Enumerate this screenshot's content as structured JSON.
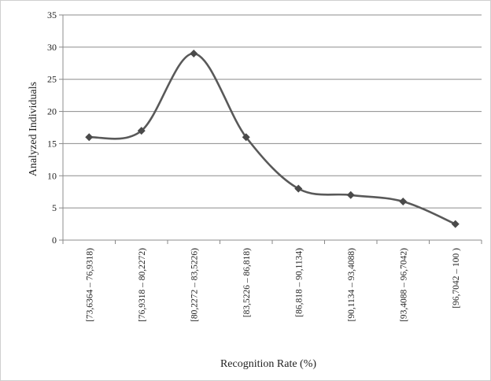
{
  "chart_data": {
    "type": "line",
    "title": "",
    "xlabel": "Recognition Rate (%)",
    "ylabel": "Analyzed Individuals",
    "ylim": [
      0,
      35
    ],
    "yticks": [
      0,
      5,
      10,
      15,
      20,
      25,
      30,
      35
    ],
    "grid": "horizontal",
    "legend": "none",
    "smooth": true,
    "marker": "diamond",
    "colors": {
      "line": "#595959",
      "marker": "#4a4a4a",
      "grid": "#8c8c8c"
    },
    "categories": [
      "[73,6364 – 76,9318)",
      "[76,9318 – 80,2272)",
      "[80,2272 – 83,5226)",
      "[83,5226 – 86,818)",
      "[86,818 – 90,1134)",
      "[90,1134 – 93,4088)",
      "[93,4088 – 96,7042)",
      "[96,7042 – 100 )"
    ],
    "values": [
      16,
      17,
      29,
      16,
      8,
      7,
      6,
      2.5
    ]
  }
}
